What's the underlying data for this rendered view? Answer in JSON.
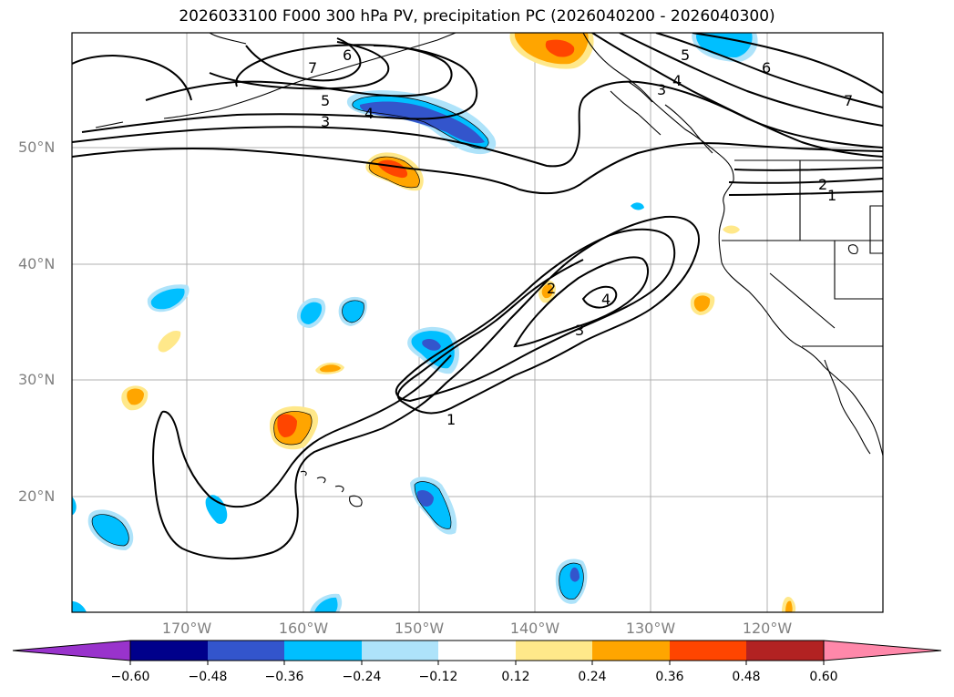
{
  "title": "2026033100 F000 300 hPa PV, precipitation PC (2026040200 - 2026040300)",
  "map": {
    "lat_labels": [
      "50°N",
      "40°N",
      "30°N",
      "20°N"
    ],
    "lon_labels": [
      "170°W",
      "160°W",
      "150°W",
      "140°W",
      "130°W",
      "120°W"
    ],
    "pv_contour_labels": [
      "7",
      "6",
      "5",
      "4",
      "3",
      "5",
      "4",
      "3",
      "6",
      "7",
      "2",
      "1",
      "1",
      "3",
      "4",
      "2"
    ]
  },
  "colorbar": {
    "ticks": [
      "−0.60",
      "−0.48",
      "−0.36",
      "−0.24",
      "−0.12",
      "0.12",
      "0.24",
      "0.36",
      "0.48",
      "0.60"
    ],
    "colors": [
      "#9933cc",
      "#00008b",
      "#3355cc",
      "#00bfff",
      "#aee3fa",
      "#ffffff",
      "#ffe88a",
      "#ffa500",
      "#ff4500",
      "#b22222",
      "#ff88aa"
    ]
  }
}
